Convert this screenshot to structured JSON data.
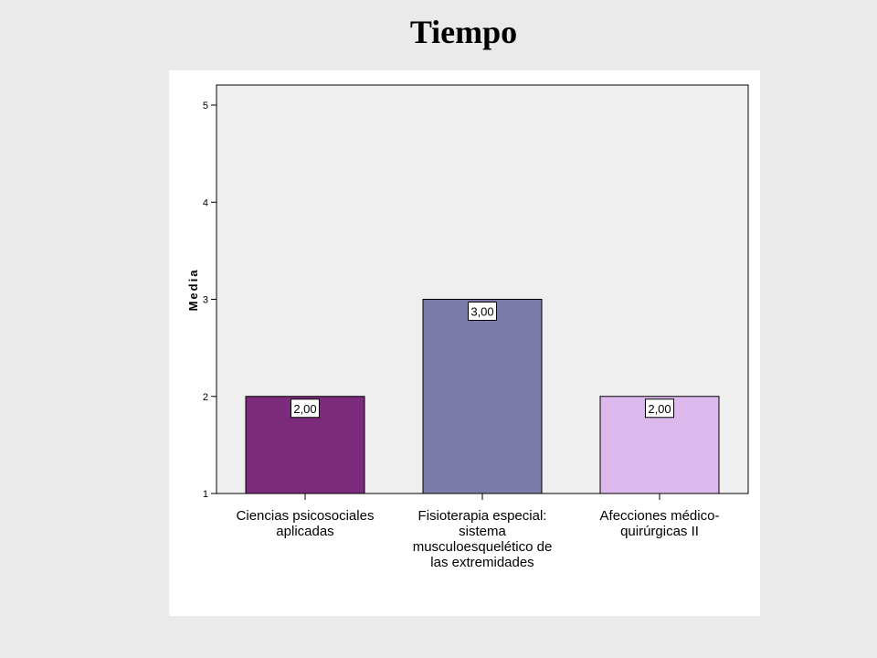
{
  "page": {
    "title": "Tiempo"
  },
  "chart_data": {
    "type": "bar",
    "ylabel": "Media",
    "xlabel": "",
    "ylim": [
      1,
      5
    ],
    "yticks": [
      1,
      2,
      3,
      4,
      5
    ],
    "categories": [
      [
        "Ciencias psicosociales",
        "aplicadas"
      ],
      [
        "Fisioterapia especial:",
        "sistema",
        "musculoesquelético de",
        "las extremidades"
      ],
      [
        "Afecciones médico-",
        "quirúrgicas II"
      ]
    ],
    "values": [
      2.0,
      3.0,
      2.0
    ],
    "value_labels": [
      "2,00",
      "3,00",
      "2,00"
    ],
    "colors": [
      "#7c2a7c",
      "#7b7aa8",
      "#dcb8ec"
    ],
    "plot_background": "#efefef",
    "grid": false,
    "legend": "none"
  }
}
